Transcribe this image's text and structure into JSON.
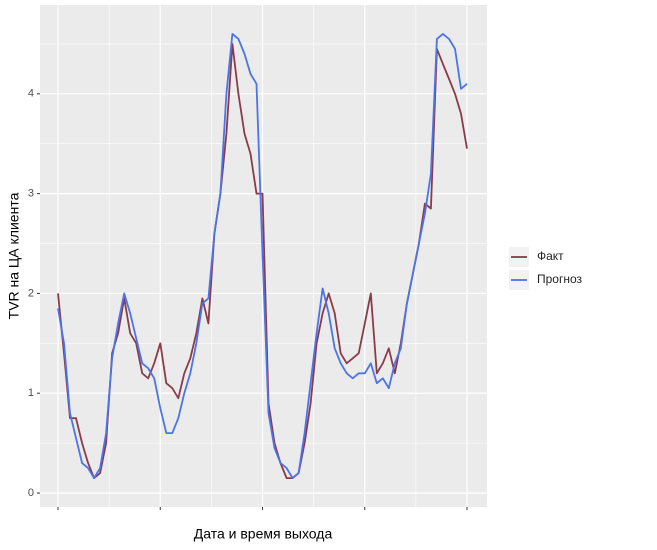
{
  "chart_data": {
    "type": "line",
    "x_label": "Дата и время выхода",
    "y_label": "TVR на ЦА клиента",
    "categories": [
      null,
      null,
      null,
      null,
      null,
      null,
      null,
      null,
      null,
      null,
      null,
      null,
      null,
      null,
      null,
      null,
      null,
      null,
      null,
      null,
      null,
      null,
      null,
      null,
      null,
      null,
      null,
      null,
      null,
      null,
      null,
      null,
      null,
      null,
      null,
      null,
      null,
      null,
      null,
      null,
      null,
      null,
      null,
      null,
      null,
      null,
      null,
      null,
      null,
      null,
      null,
      null,
      null,
      null,
      null,
      null,
      null,
      null,
      null,
      null,
      null,
      null,
      null,
      null,
      null,
      null,
      null,
      null,
      null
    ],
    "series": [
      {
        "name": "Факт",
        "color": "#8B3A4A",
        "values": [
          2.0,
          1.4,
          0.75,
          0.75,
          0.5,
          0.3,
          0.15,
          0.2,
          0.5,
          1.4,
          1.6,
          1.95,
          1.6,
          1.5,
          1.2,
          1.15,
          1.3,
          1.5,
          1.1,
          1.05,
          0.95,
          1.2,
          1.35,
          1.6,
          1.95,
          1.7,
          2.6,
          3.0,
          3.6,
          4.5,
          4.0,
          3.6,
          3.4,
          3.0,
          3.0,
          0.9,
          0.5,
          0.3,
          0.15,
          0.15,
          0.2,
          0.5,
          0.9,
          1.5,
          1.8,
          2.0,
          1.8,
          1.4,
          1.3,
          1.35,
          1.4,
          1.7,
          2.0,
          1.2,
          1.3,
          1.45,
          1.2,
          1.5,
          1.9,
          2.2,
          2.5,
          2.9,
          2.85,
          4.45,
          4.3,
          4.15,
          4.0,
          3.8,
          3.45
        ]
      },
      {
        "name": "Прогноз",
        "color": "#4A74E8",
        "values": [
          1.85,
          1.5,
          0.8,
          0.55,
          0.3,
          0.25,
          0.15,
          0.25,
          0.6,
          1.35,
          1.7,
          2.0,
          1.8,
          1.55,
          1.3,
          1.25,
          1.15,
          0.85,
          0.6,
          0.6,
          0.75,
          1.0,
          1.2,
          1.5,
          1.9,
          1.95,
          2.6,
          3.0,
          4.0,
          4.6,
          4.55,
          4.4,
          4.2,
          4.1,
          2.4,
          0.8,
          0.45,
          0.3,
          0.25,
          0.15,
          0.2,
          0.6,
          1.1,
          1.6,
          2.05,
          1.8,
          1.45,
          1.3,
          1.2,
          1.15,
          1.2,
          1.2,
          1.3,
          1.1,
          1.15,
          1.05,
          1.3,
          1.45,
          1.9,
          2.2,
          2.5,
          2.8,
          3.2,
          4.55,
          4.6,
          4.55,
          4.45,
          4.05,
          4.1
        ]
      }
    ],
    "ylim": [
      -0.14,
      4.89
    ],
    "yticks": [
      0,
      1,
      2,
      3,
      4
    ],
    "grid": true
  }
}
